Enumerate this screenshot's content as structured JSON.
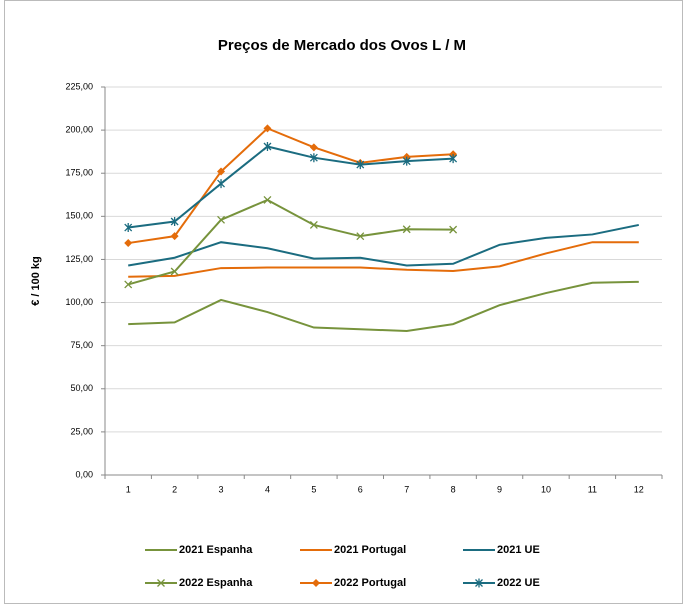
{
  "chart_data": {
    "type": "line",
    "title": "Preços de Mercado dos Ovos L / M",
    "y_label": "€ / 100 kg",
    "categories": [
      "1",
      "2",
      "3",
      "4",
      "5",
      "6",
      "7",
      "8",
      "9",
      "10",
      "11",
      "12"
    ],
    "ylim": [
      0,
      225
    ],
    "yticks": [
      {
        "value": 0,
        "label": "0,00"
      },
      {
        "value": 25,
        "label": "25,00"
      },
      {
        "value": 50,
        "label": "50,00"
      },
      {
        "value": 75,
        "label": "75,00"
      },
      {
        "value": 100,
        "label": "100,00"
      },
      {
        "value": 125,
        "label": "125,00"
      },
      {
        "value": 150,
        "label": "150,00"
      },
      {
        "value": 175,
        "label": "175,00"
      },
      {
        "value": 200,
        "label": "200,00"
      },
      {
        "value": 225,
        "label": "225,00"
      }
    ],
    "grid": true,
    "series": [
      {
        "name": "2021 Espanha",
        "color": "#77933c",
        "marker": "none",
        "values": [
          87.5,
          88.5,
          101.5,
          94.5,
          85.5,
          84.5,
          83.5,
          87.5,
          98.5,
          105.5,
          111.5,
          112
        ]
      },
      {
        "name": "2021 Portugal",
        "color": "#e46c0a",
        "marker": "none",
        "values": [
          115,
          115.5,
          120,
          120.3,
          120.3,
          120.3,
          119,
          118.3,
          121,
          128.5,
          135,
          135
        ]
      },
      {
        "name": "2021 UE",
        "color": "#1b6c80",
        "marker": "none",
        "values": [
          121.5,
          126,
          135,
          131.5,
          125.5,
          126,
          121.5,
          122.5,
          133.5,
          137.5,
          139.5,
          145
        ]
      },
      {
        "name": "2022 Espanha",
        "color": "#77933c",
        "marker": "x",
        "values": [
          110.5,
          118,
          148,
          159.5,
          145,
          138.5,
          142.5,
          142.3,
          null,
          null,
          null,
          null
        ]
      },
      {
        "name": "2022 Portugal",
        "color": "#e46c0a",
        "marker": "diamond",
        "values": [
          134.5,
          138.5,
          176,
          201,
          190,
          181,
          184.5,
          186,
          null,
          null,
          null,
          null
        ]
      },
      {
        "name": "2022 UE",
        "color": "#1b6c80",
        "marker": "star",
        "values": [
          143.5,
          147,
          169,
          190.5,
          184,
          180,
          182,
          183.5,
          null,
          null,
          null,
          null
        ]
      }
    ]
  }
}
